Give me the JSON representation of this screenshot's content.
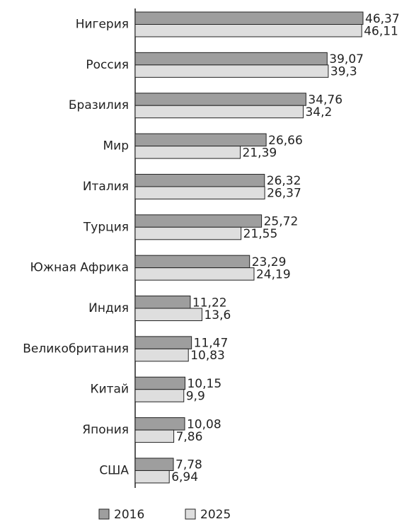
{
  "chart_data": {
    "type": "bar",
    "orientation": "horizontal",
    "categories": [
      "Нигерия",
      "Россия",
      "Бразилия",
      "Мир",
      "Италия",
      "Турция",
      "Южная Африка",
      "Индия",
      "Великобритания",
      "Китай",
      "Япония",
      "США"
    ],
    "series": [
      {
        "name": "2016",
        "color": "#9e9e9e",
        "values": [
          46.37,
          39.07,
          34.76,
          26.66,
          26.32,
          25.72,
          23.29,
          11.22,
          11.47,
          10.15,
          10.08,
          7.78
        ],
        "value_labels": [
          "46,37",
          "39,07",
          "34,76",
          "26,66",
          "26,32",
          "25,72",
          "23,29",
          "11,22",
          "11,47",
          "10,15",
          "10,08",
          "7,78"
        ]
      },
      {
        "name": "2025",
        "color": "#dedede",
        "values": [
          46.11,
          39.3,
          34.2,
          21.39,
          26.37,
          21.55,
          24.19,
          13.6,
          10.83,
          9.9,
          7.86,
          6.94
        ],
        "value_labels": [
          "46,11",
          "39,3",
          "34,2",
          "21,39",
          "26,37",
          "21,55",
          "24,19",
          "13,6",
          "10,83",
          "9,9",
          "7,86",
          "6,94"
        ]
      }
    ],
    "legend": "bottom"
  }
}
